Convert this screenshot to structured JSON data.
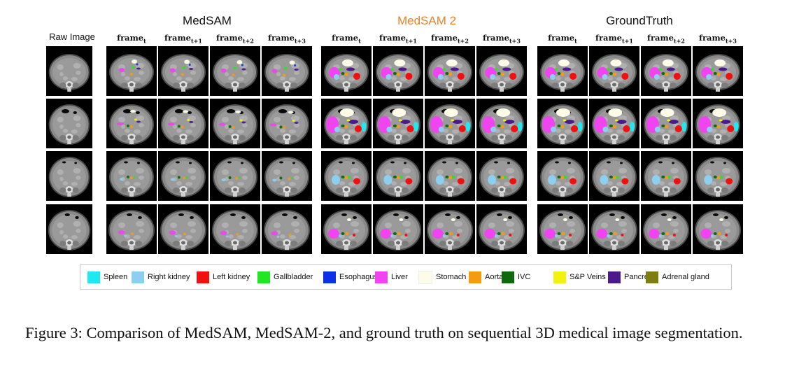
{
  "groups": [
    {
      "title": "MedSAM"
    },
    {
      "title": "MedSAM 2",
      "color": "#e8822a"
    },
    {
      "title": "GroundTruth"
    }
  ],
  "raw_image_label": "Raw Image",
  "column_headers": [
    {
      "base": "frame",
      "sub": "t"
    },
    {
      "base": "frame",
      "sub": "t+1"
    },
    {
      "base": "frame",
      "sub": "t+2"
    },
    {
      "base": "frame",
      "sub": "t+3"
    }
  ],
  "row_count": 4,
  "legend": [
    {
      "label": "Spleen",
      "color": "#1ee8f0"
    },
    {
      "label": "Right kidney",
      "color": "#8ccff0"
    },
    {
      "label": "Left kidney",
      "color": "#f01010"
    },
    {
      "label": "Gallbladder",
      "color": "#22e622"
    },
    {
      "label": "Esophagus",
      "color": "#0c30e8"
    },
    {
      "label": "Liver",
      "color": "#f044f0"
    },
    {
      "label": "Stomach",
      "color": "#fefbe6"
    },
    {
      "label": "Aorta",
      "color": "#f39c12"
    },
    {
      "label": "IVC",
      "color": "#0c6a0c"
    },
    {
      "label": "S&P Veins",
      "color": "#f2f20c"
    },
    {
      "label": "Pancreas",
      "color": "#4c1a8c"
    },
    {
      "label": "Adrenal gland",
      "color": "#7d7d10"
    }
  ],
  "caption": "Figure 3: Comparison of MedSAM, MedSAM-2, and ground truth on sequential 3D medical image segmentation."
}
